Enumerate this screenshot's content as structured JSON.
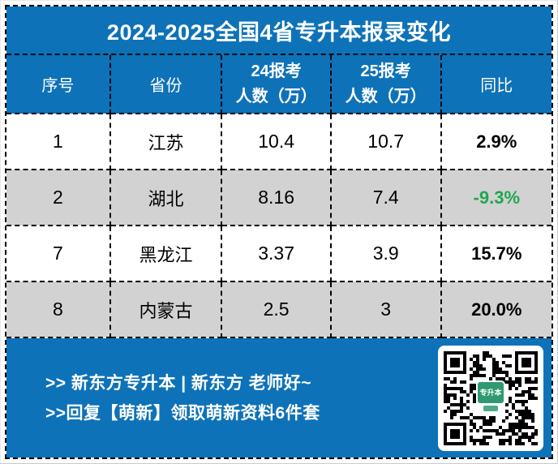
{
  "colors": {
    "blue": "#0e72b8",
    "row-alt": "#d2d2d2",
    "green": "#1fa750",
    "badge-green": "#2f9a72",
    "white": "#ffffff",
    "black": "#000000"
  },
  "title": "2024-2025全国4省专升本报录变化",
  "table": {
    "headers": [
      "序号",
      "省份",
      "24报考\n人数（万）",
      "25报考\n人数（万）",
      "同比"
    ],
    "rows": [
      {
        "seq": "1",
        "province": "江苏",
        "y24": "10.4",
        "y25": "10.7",
        "yoy": "2.9%",
        "yoy_color": "#000000"
      },
      {
        "seq": "2",
        "province": "湖北",
        "y24": "8.16",
        "y25": "7.4",
        "yoy": "-9.3%",
        "yoy_color": "#1fa750"
      },
      {
        "seq": "7",
        "province": "黑龙江",
        "y24": "3.37",
        "y25": "3.9",
        "yoy": "15.7%",
        "yoy_color": "#000000"
      },
      {
        "seq": "8",
        "province": "内蒙古",
        "y24": "2.5",
        "y25": "3",
        "yoy": "20.0%",
        "yoy_color": "#000000"
      }
    ]
  },
  "footer": {
    "line1": ">> 新东方专升本 | 新东方 老师好~",
    "line2": ">>回复【萌新】领取萌新资料6件套",
    "qr_badge_text": "专升本"
  }
}
